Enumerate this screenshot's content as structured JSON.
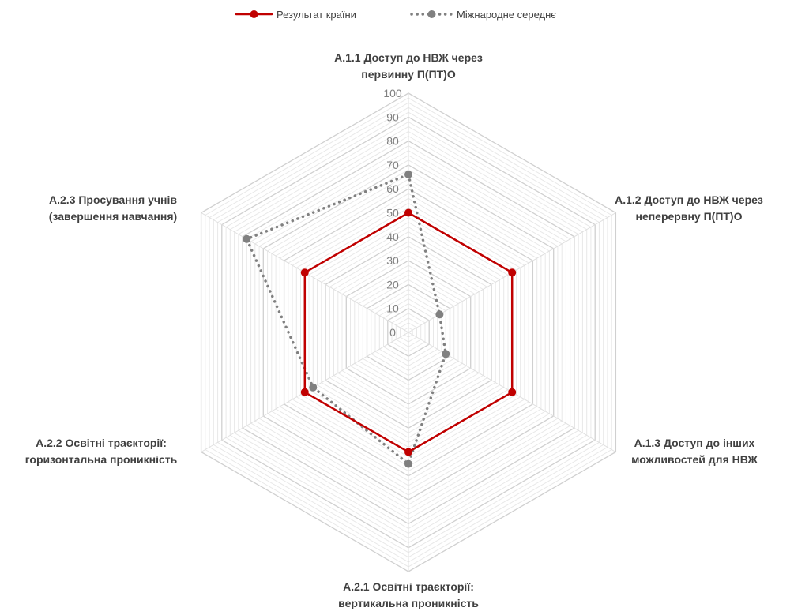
{
  "chart_data": {
    "type": "radar",
    "title": "",
    "axes": [
      [
        "A.1.1 Доступ до НВЖ через",
        "первинну П(ПТ)О"
      ],
      [
        "A.1.2 Доступ до НВЖ через",
        "неперервну П(ПТ)О"
      ],
      [
        "A.1.3 Доступ до інших",
        "можливостей для НВЖ"
      ],
      [
        "A.2.1 Освітні траєкторії:",
        "вертикальна проникність"
      ],
      [
        "A.2.2 Освітні траєкторії:",
        "горизонтальна проникність"
      ],
      [
        "A.2.3 Просування учнів",
        "(завершення навчання)"
      ]
    ],
    "ticks": [
      "0",
      "10",
      "20",
      "30",
      "40",
      "50",
      "60",
      "70",
      "80",
      "90",
      "100"
    ],
    "range": [
      0,
      100
    ],
    "grid_step": 2,
    "grid": true,
    "legend_position": "top",
    "series": [
      {
        "name": "Результат країни",
        "values": [
          50,
          50,
          50,
          50,
          50,
          50
        ],
        "color": "#C00000",
        "line_style": "solid"
      },
      {
        "name": "Міжнародне середнє",
        "values": [
          66,
          15,
          18,
          55,
          46,
          78
        ],
        "color": "#808080",
        "line_style": "dotted"
      }
    ]
  }
}
